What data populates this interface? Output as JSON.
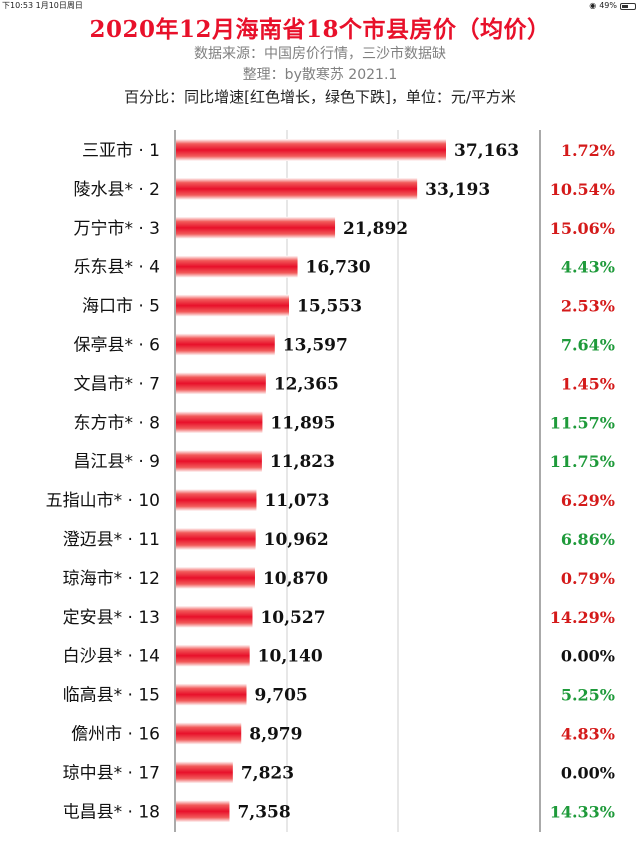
{
  "status_bar": {
    "time": "下10:53",
    "date": "1月10日周日",
    "battery": "49%",
    "battery_level": 0.49,
    "wifi_icon": "wifi-icon"
  },
  "header": {
    "title": "2020年12月海南省18个市县房价（均价）",
    "source": "数据来源：中国房价行情，三沙市数据缺",
    "author": "整理：by散寒苏  2021.1",
    "legend_note": "百分比：同比增速[红色增长，绿色下跌]，单位：元/平方米"
  },
  "colors": {
    "bar": "#e8102a",
    "up": "#d41a1a",
    "down": "#1e9a3a",
    "flat": "#111111",
    "title": "#e8102a"
  },
  "chart_data": {
    "type": "bar",
    "orientation": "horizontal",
    "title": "2020年12月海南省18个市县房价（均价）",
    "unit": "元/平方米",
    "categories": [
      "三亚市 · 1",
      "陵水县* · 2",
      "万宁市* · 3",
      "乐东县* · 4",
      "海口市 · 5",
      "保亭县* · 6",
      "文昌市* · 7",
      "东方市* · 8",
      "昌江县* · 9",
      "五指山市* · 10",
      "澄迈县* · 11",
      "琼海市* · 12",
      "定安县* · 13",
      "白沙县* · 14",
      "临高县* · 15",
      "儋州市 · 16",
      "琼中县* · 17",
      "屯昌县* · 18"
    ],
    "values": [
      37163,
      33193,
      21892,
      16730,
      15553,
      13597,
      12365,
      11895,
      11823,
      11073,
      10962,
      10870,
      10527,
      10140,
      9705,
      8979,
      7823,
      7358
    ],
    "value_labels": [
      "37,163",
      "33,193",
      "21,892",
      "16,730",
      "15,553",
      "13,597",
      "12,365",
      "11,895",
      "11,823",
      "11,073",
      "10,962",
      "10,870",
      "10,527",
      "10,140",
      "9,705",
      "8,979",
      "7,823",
      "7,358"
    ],
    "yoy": [
      "1.72%",
      "10.54%",
      "15.06%",
      "4.43%",
      "2.53%",
      "7.64%",
      "1.45%",
      "11.57%",
      "11.75%",
      "6.29%",
      "6.86%",
      "0.79%",
      "14.29%",
      "0.00%",
      "5.25%",
      "4.83%",
      "0.00%",
      "14.33%"
    ],
    "yoy_direction": [
      "up",
      "up",
      "up",
      "down",
      "up",
      "down",
      "up",
      "down",
      "down",
      "up",
      "down",
      "up",
      "up",
      "flat",
      "down",
      "up",
      "flat",
      "down"
    ],
    "xlim": [
      0,
      37163
    ],
    "grid": true
  }
}
